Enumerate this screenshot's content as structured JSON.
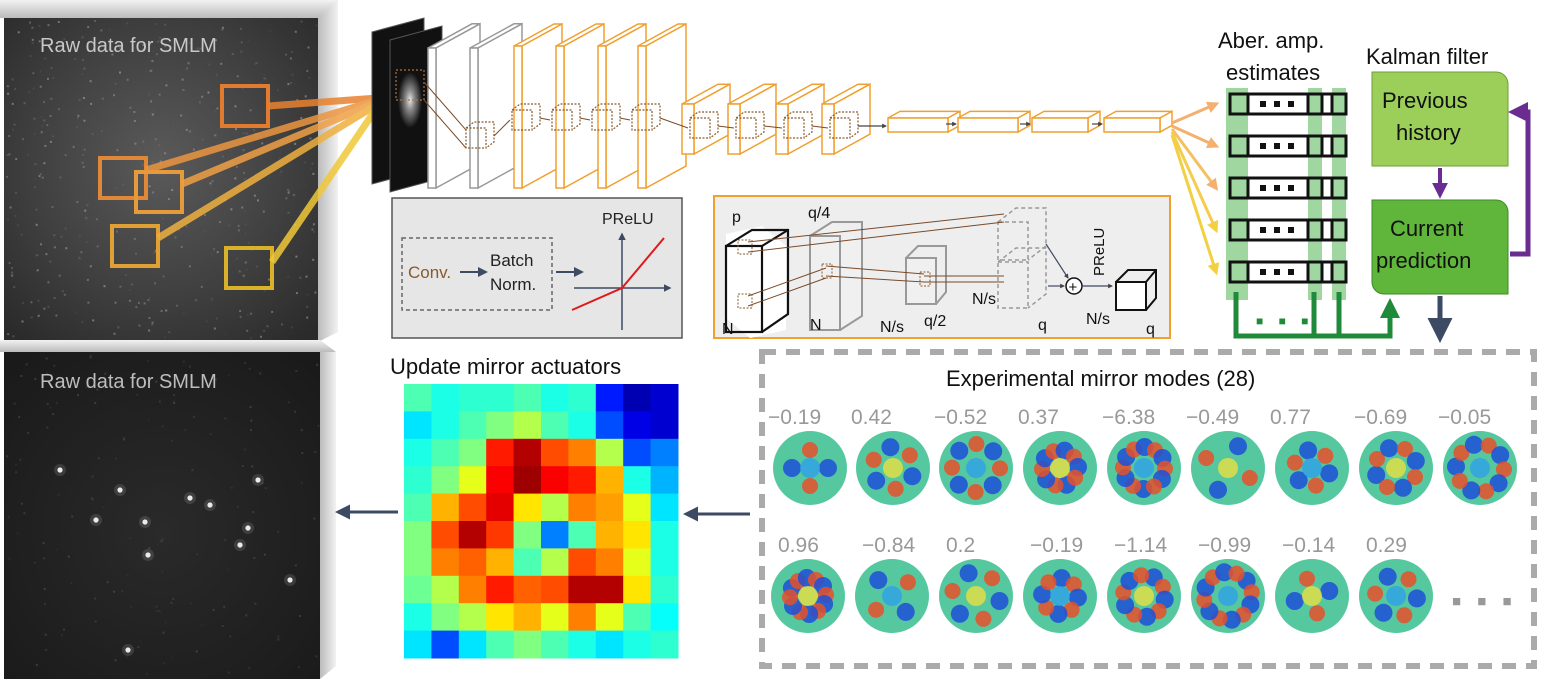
{
  "colors": {
    "orange": "#f0a030",
    "gray_box": "#e6e6e6",
    "green_dark": "#1f8a3a",
    "green_light": "#9ccf66",
    "green_col": "#8fd08f",
    "purple": "#6a2c91",
    "navy": "#3d4a63",
    "prelu_red": "#e0191d"
  },
  "raw_panel_top": {
    "label": "Raw data for SMLM"
  },
  "raw_panel_bottom": {
    "label": "Raw data for SMLM"
  },
  "legend_box": {
    "conv": "Conv.",
    "batch_line1": "Batch",
    "batch_line2": "Norm.",
    "prelu": "PReLU"
  },
  "res_block": {
    "p": "p",
    "q4": "q/4",
    "n1": "N",
    "n2": "N",
    "ns1": "N/s",
    "q2": "q/2",
    "ns2": "N/s",
    "q1": "q",
    "prelu": "PReLU",
    "ns3": "N/s",
    "q3": "q",
    "plus": "+"
  },
  "aber": {
    "line1": "Aber. amp.",
    "line2": "estimates",
    "dots": "■ ■ ■",
    "row_count": 5
  },
  "kalman": {
    "title": "Kalman filter",
    "prev_line1": "Previous",
    "prev_line2": "history",
    "curr_line1": "Current",
    "curr_line2": "prediction"
  },
  "mirror": {
    "title": "Update mirror actuators"
  },
  "modes": {
    "title": "Experimental mirror modes (28)",
    "row1_values": [
      "−0.19",
      "0.42",
      "−0.52",
      "0.37",
      "−6.38",
      "−0.49",
      "0.77",
      "−0.69",
      "−0.05"
    ],
    "row2_values": [
      "0.96",
      "−0.84",
      "0.2",
      "−0.19",
      "−1.14",
      "−0.99",
      "−0.14",
      "0.29"
    ],
    "ellipsis": "■ ■ ■"
  }
}
